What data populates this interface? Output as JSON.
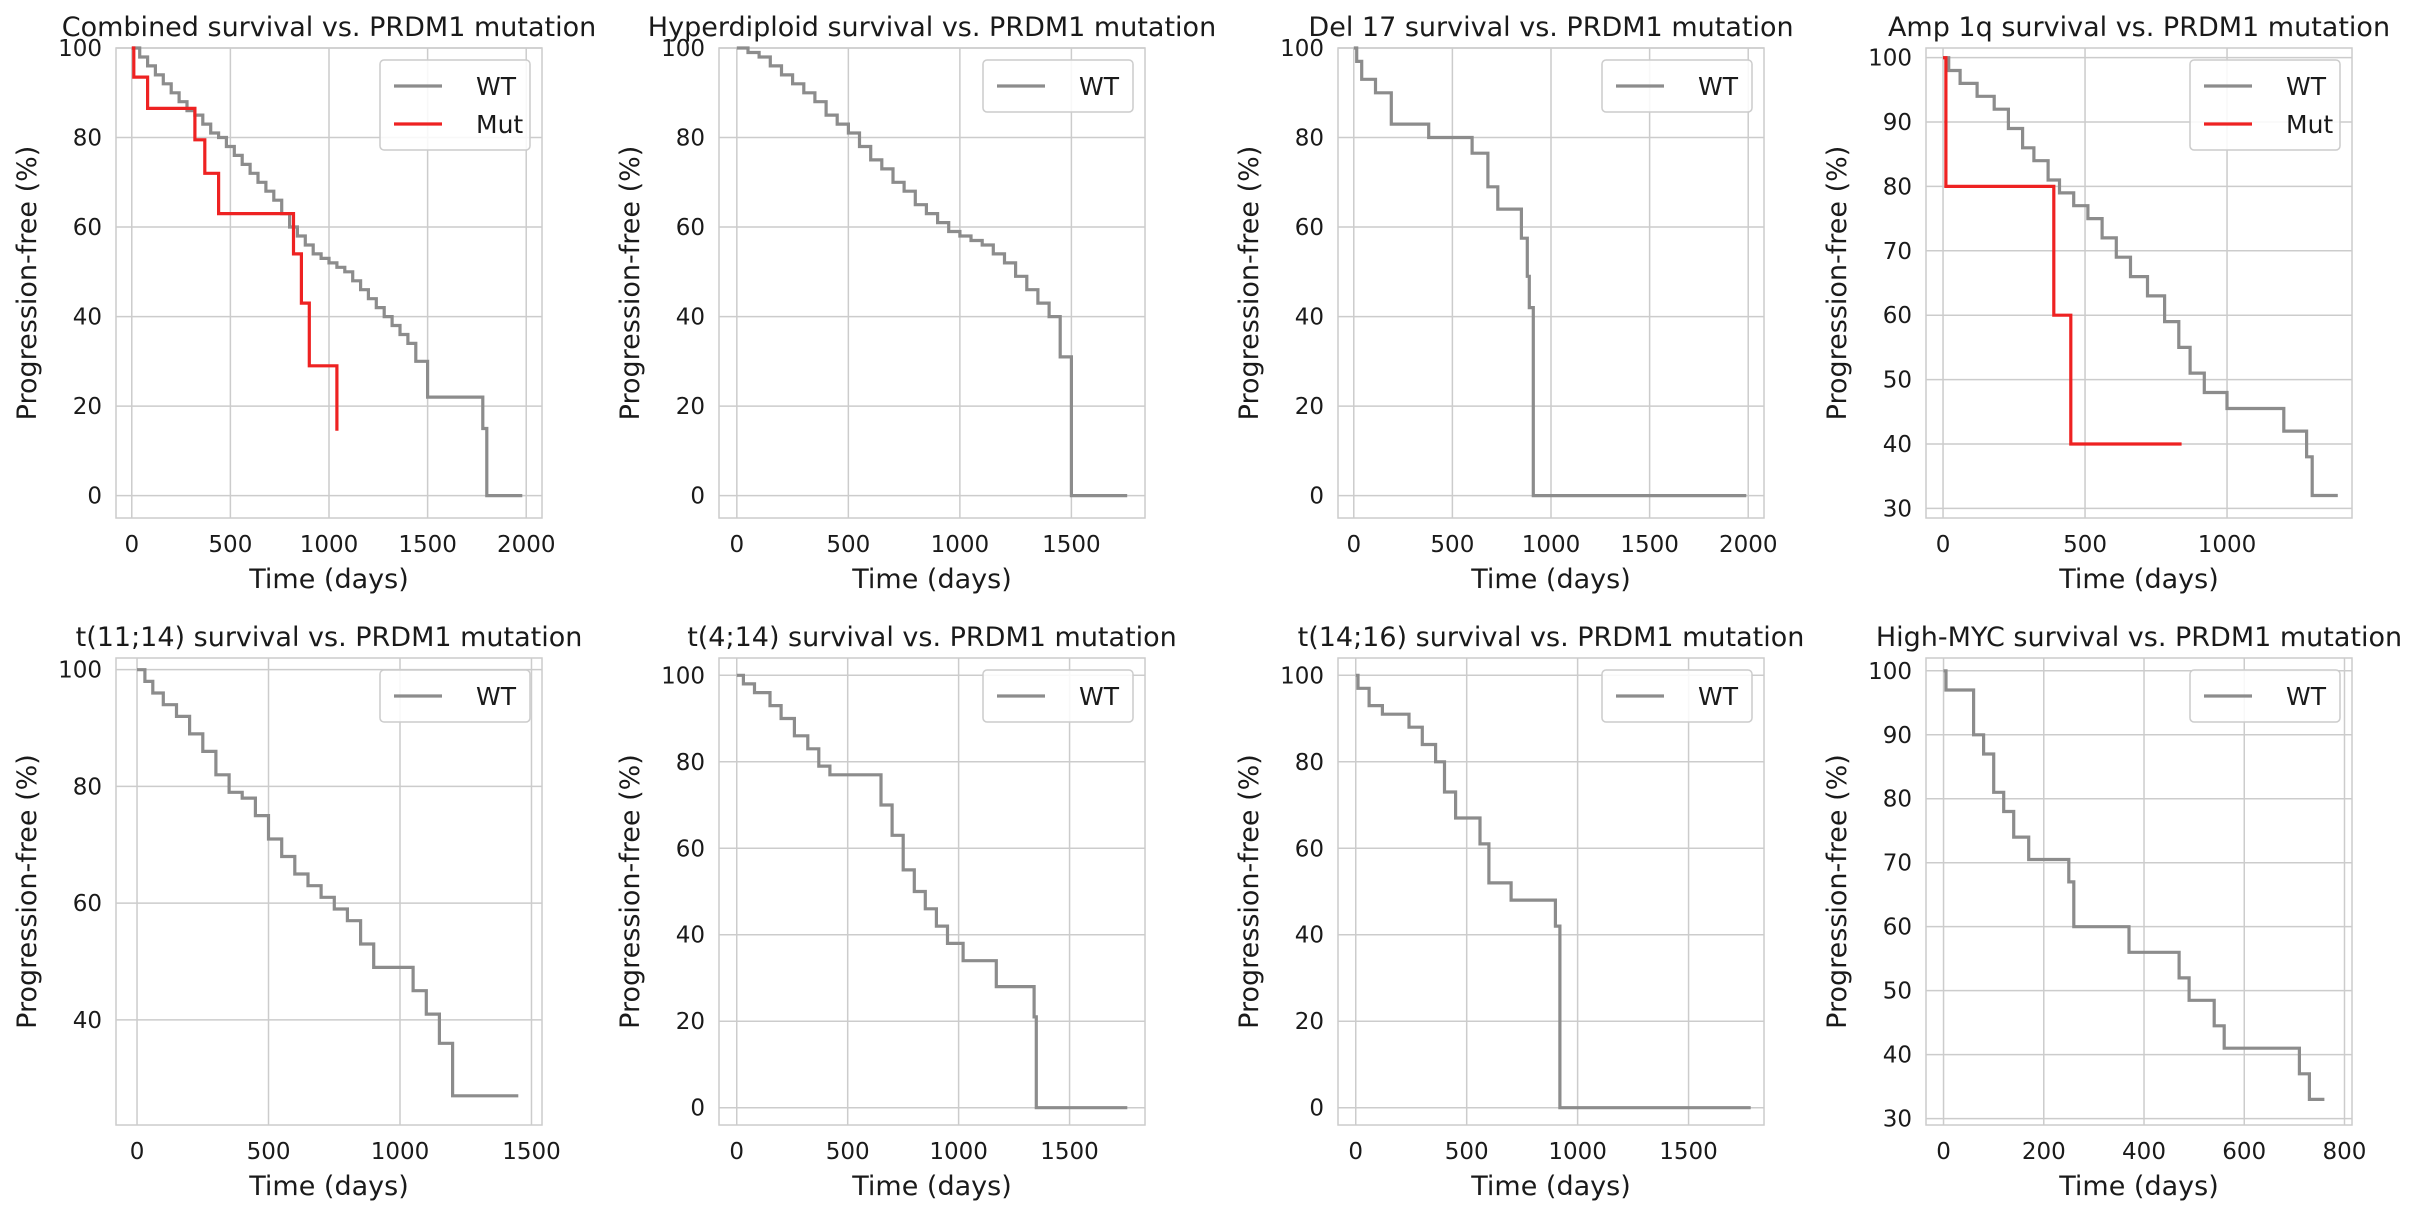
{
  "colors": {
    "wt": "#8c8c8c",
    "mut": "#ee2222",
    "grid": "#cccccc"
  },
  "chart_data": [
    {
      "type": "line",
      "title": "Combined survival vs. PRDM1 mutation",
      "xlabel": "Time (days)",
      "ylabel": "Progression-free (%)",
      "xlim": [
        -80,
        2080
      ],
      "ylim": [
        -5,
        100
      ],
      "xticks": [
        0,
        500,
        1000,
        1500,
        2000
      ],
      "yticks": [
        0,
        20,
        40,
        60,
        80,
        100
      ],
      "legend_loc": "top-right",
      "series": [
        {
          "name": "WT",
          "color_key": "wt",
          "x": [
            0,
            40,
            80,
            120,
            160,
            200,
            240,
            280,
            320,
            360,
            400,
            440,
            480,
            520,
            560,
            600,
            640,
            680,
            720,
            760,
            800,
            840,
            880,
            920,
            960,
            1000,
            1040,
            1080,
            1120,
            1160,
            1200,
            1240,
            1280,
            1320,
            1360,
            1400,
            1440,
            1500,
            1600,
            1700,
            1760,
            1780,
            1800,
            1980
          ],
          "y": [
            100,
            98,
            96,
            94,
            92,
            90,
            88,
            86,
            85,
            83,
            81,
            80,
            78,
            76,
            74,
            72,
            70,
            68,
            66,
            63,
            60,
            58,
            56,
            54,
            53,
            52,
            51,
            50,
            48,
            46,
            44,
            42,
            40,
            38,
            36,
            34,
            30,
            22,
            22,
            22,
            22,
            15,
            0,
            0
          ]
        },
        {
          "name": "Mut",
          "color_key": "mut",
          "x": [
            0,
            10,
            80,
            320,
            370,
            440,
            750,
            820,
            860,
            900,
            1040
          ],
          "y": [
            100,
            93.5,
            86.5,
            79.5,
            72,
            63,
            63,
            54,
            43,
            29,
            14.5
          ]
        }
      ]
    },
    {
      "type": "line",
      "title": "Hyperdiploid survival vs. PRDM1 mutation",
      "xlabel": "Time (days)",
      "ylabel": "Progression-free (%)",
      "xlim": [
        -80,
        1830
      ],
      "ylim": [
        -5,
        100
      ],
      "xticks": [
        0,
        500,
        1000,
        1500
      ],
      "yticks": [
        0,
        20,
        40,
        60,
        80,
        100
      ],
      "legend_loc": "top-right",
      "series": [
        {
          "name": "WT",
          "color_key": "wt",
          "x": [
            0,
            50,
            100,
            150,
            200,
            250,
            300,
            350,
            400,
            450,
            500,
            550,
            600,
            650,
            700,
            750,
            800,
            850,
            900,
            950,
            1000,
            1050,
            1100,
            1150,
            1200,
            1250,
            1300,
            1350,
            1400,
            1450,
            1500,
            1750
          ],
          "y": [
            100,
            99,
            98,
            96,
            94,
            92,
            90,
            88,
            85,
            83,
            81,
            78,
            75,
            73,
            70,
            68,
            65,
            63,
            61,
            59,
            58,
            57,
            56,
            54,
            52,
            49,
            46,
            43,
            40,
            31,
            0,
            0
          ]
        }
      ]
    },
    {
      "type": "line",
      "title": "Del 17 survival vs. PRDM1 mutation",
      "xlabel": "Time (days)",
      "ylabel": "Progression-free (%)",
      "xlim": [
        -80,
        2080
      ],
      "ylim": [
        -5,
        100
      ],
      "xticks": [
        0,
        500,
        1000,
        1500,
        2000
      ],
      "yticks": [
        0,
        20,
        40,
        60,
        80,
        100
      ],
      "legend_loc": "top-right",
      "series": [
        {
          "name": "WT",
          "color_key": "wt",
          "x": [
            0,
            15,
            40,
            110,
            190,
            380,
            600,
            680,
            730,
            850,
            880,
            890,
            910,
            1990
          ],
          "y": [
            100,
            97,
            93,
            90,
            83,
            80,
            76.5,
            69,
            64,
            57.5,
            49,
            42,
            0,
            0
          ]
        }
      ]
    },
    {
      "type": "line",
      "title": "Amp 1q survival vs. PRDM1 mutation",
      "xlabel": "Time (days)",
      "ylabel": "Progression-free (%)",
      "xlim": [
        -60,
        1440
      ],
      "ylim": [
        28.5,
        101.5
      ],
      "xticks": [
        0,
        500,
        1000
      ],
      "yticks": [
        30,
        40,
        50,
        60,
        70,
        80,
        90,
        100
      ],
      "legend_loc": "top-right",
      "series": [
        {
          "name": "WT",
          "color_key": "wt",
          "x": [
            0,
            20,
            60,
            120,
            180,
            230,
            280,
            320,
            370,
            410,
            460,
            510,
            560,
            610,
            660,
            720,
            780,
            830,
            870,
            920,
            1000,
            1100,
            1150,
            1200,
            1280,
            1300,
            1390
          ],
          "y": [
            100,
            98,
            96,
            94,
            92,
            89,
            86,
            84,
            81,
            79,
            77,
            75,
            72,
            69,
            66,
            63,
            59,
            55,
            51,
            48,
            45.5,
            45.5,
            45.5,
            42,
            38,
            32,
            32
          ]
        },
        {
          "name": "Mut",
          "color_key": "mut",
          "x": [
            0,
            10,
            390,
            450,
            840
          ],
          "y": [
            100,
            80,
            60,
            40,
            40
          ]
        }
      ]
    },
    {
      "type": "line",
      "title": "t(11;14) survival vs. PRDM1 mutation",
      "xlabel": "Time (days)",
      "ylabel": "Progression-free (%)",
      "xlim": [
        -80,
        1540
      ],
      "ylim": [
        22,
        102
      ],
      "xticks": [
        0,
        500,
        1000,
        1500
      ],
      "yticks": [
        40,
        60,
        80,
        100
      ],
      "legend_loc": "top-right",
      "series": [
        {
          "name": "WT",
          "color_key": "wt",
          "x": [
            0,
            30,
            60,
            100,
            150,
            200,
            250,
            300,
            350,
            400,
            450,
            500,
            550,
            600,
            650,
            700,
            750,
            800,
            850,
            900,
            1000,
            1050,
            1100,
            1150,
            1200,
            1450
          ],
          "y": [
            100,
            98,
            96,
            94,
            92,
            89,
            86,
            82,
            79,
            78,
            75,
            71,
            68,
            65,
            63,
            61,
            59,
            57,
            53,
            49,
            49,
            45,
            41,
            36,
            27,
            27
          ]
        }
      ]
    },
    {
      "type": "line",
      "title": "t(4;14) survival vs. PRDM1 mutation",
      "xlabel": "Time (days)",
      "ylabel": "Progression-free (%)",
      "xlim": [
        -80,
        1840
      ],
      "ylim": [
        -4,
        104
      ],
      "xticks": [
        0,
        500,
        1000,
        1500
      ],
      "yticks": [
        0,
        20,
        40,
        60,
        80,
        100
      ],
      "legend_loc": "top-right",
      "series": [
        {
          "name": "WT",
          "color_key": "wt",
          "x": [
            0,
            30,
            80,
            150,
            200,
            260,
            320,
            370,
            420,
            620,
            650,
            700,
            750,
            800,
            850,
            900,
            950,
            1020,
            1100,
            1170,
            1340,
            1350,
            1760
          ],
          "y": [
            100,
            98,
            96,
            93,
            90,
            86,
            83,
            79,
            77,
            77,
            70,
            63,
            55,
            50,
            46,
            42,
            38,
            34,
            34,
            28,
            21,
            0,
            0
          ]
        }
      ]
    },
    {
      "type": "line",
      "title": "t(14;16) survival vs. PRDM1 mutation",
      "xlabel": "Time (days)",
      "ylabel": "Progression-free (%)",
      "xlim": [
        -80,
        1840
      ],
      "ylim": [
        -4,
        104
      ],
      "xticks": [
        0,
        500,
        1000,
        1500
      ],
      "yticks": [
        0,
        20,
        40,
        60,
        80,
        100
      ],
      "legend_loc": "top-right",
      "series": [
        {
          "name": "WT",
          "color_key": "wt",
          "x": [
            0,
            10,
            60,
            120,
            240,
            300,
            360,
            400,
            450,
            530,
            560,
            600,
            700,
            900,
            920,
            1780
          ],
          "y": [
            100,
            97,
            93,
            91,
            88,
            84,
            80,
            73,
            67,
            67,
            61,
            52,
            48,
            42,
            0,
            0
          ]
        }
      ]
    },
    {
      "type": "line",
      "title": "High-MYC survival vs. PRDM1 mutation",
      "xlabel": "Time (days)",
      "ylabel": "Progression-free (%)",
      "xlim": [
        -35,
        815
      ],
      "ylim": [
        29,
        102
      ],
      "xticks": [
        0,
        200,
        400,
        600,
        800
      ],
      "yticks": [
        30,
        40,
        50,
        60,
        70,
        80,
        90,
        100
      ],
      "legend_loc": "top-right",
      "series": [
        {
          "name": "WT",
          "color_key": "wt",
          "x": [
            0,
            5,
            50,
            60,
            80,
            100,
            120,
            140,
            170,
            250,
            260,
            370,
            470,
            490,
            540,
            560,
            710,
            730,
            760
          ],
          "y": [
            100,
            97,
            97,
            90,
            87,
            81,
            78,
            74,
            70.5,
            67,
            60,
            56,
            52,
            48.5,
            44.5,
            41,
            37,
            33,
            33
          ]
        }
      ]
    }
  ]
}
